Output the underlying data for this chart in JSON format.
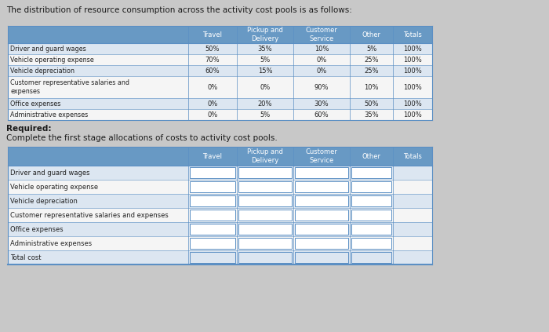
{
  "title": "The distribution of resource consumption across the activity cost pools is as follows:",
  "required_text": "Required:",
  "required_sub": "Complete the first stage allocations of costs to activity cost pools.",
  "table1_headers": [
    "",
    "Travel",
    "Pickup and\nDelivery",
    "Customer\nService",
    "Other",
    "Totals"
  ],
  "table1_rows": [
    [
      "Driver and guard wages",
      "50%",
      "35%",
      "10%",
      "5%",
      "100%"
    ],
    [
      "Vehicle operating expense",
      "70%",
      "5%",
      "0%",
      "25%",
      "100%"
    ],
    [
      "Vehicle depreciation",
      "60%",
      "15%",
      "0%",
      "25%",
      "100%"
    ],
    [
      "Customer representative salaries and\n  expenses",
      "0%",
      "0%",
      "90%",
      "10%",
      "100%"
    ],
    [
      "Office expenses",
      "0%",
      "20%",
      "30%",
      "50%",
      "100%"
    ],
    [
      "Administrative expenses",
      "0%",
      "5%",
      "60%",
      "35%",
      "100%"
    ]
  ],
  "table2_headers": [
    "",
    "Travel",
    "Pickup and\nDelivery",
    "Customer\nService",
    "Other",
    "Totals"
  ],
  "table2_rows": [
    [
      "Driver and guard wages",
      "",
      "",
      "",
      "",
      ""
    ],
    [
      "Vehicle operating expense",
      "",
      "",
      "",
      "",
      ""
    ],
    [
      "Vehicle depreciation",
      "",
      "",
      "",
      "",
      ""
    ],
    [
      "Customer representative salaries and expenses",
      "",
      "",
      "",
      "",
      ""
    ],
    [
      "Office expenses",
      "",
      "",
      "",
      "",
      ""
    ],
    [
      "Administrative expenses",
      "",
      "",
      "",
      "",
      ""
    ],
    [
      "Total cost",
      "",
      "",
      "",
      "",
      ""
    ]
  ],
  "header_bg": "#6899c4",
  "header_text": "#ffffff",
  "row_bg_light": "#dce6f1",
  "row_bg_white": "#f5f5f5",
  "table_border": "#5b8fc4",
  "body_text_color": "#222222",
  "title_color": "#1a1a1a",
  "bg_color": "#c8c8c8"
}
